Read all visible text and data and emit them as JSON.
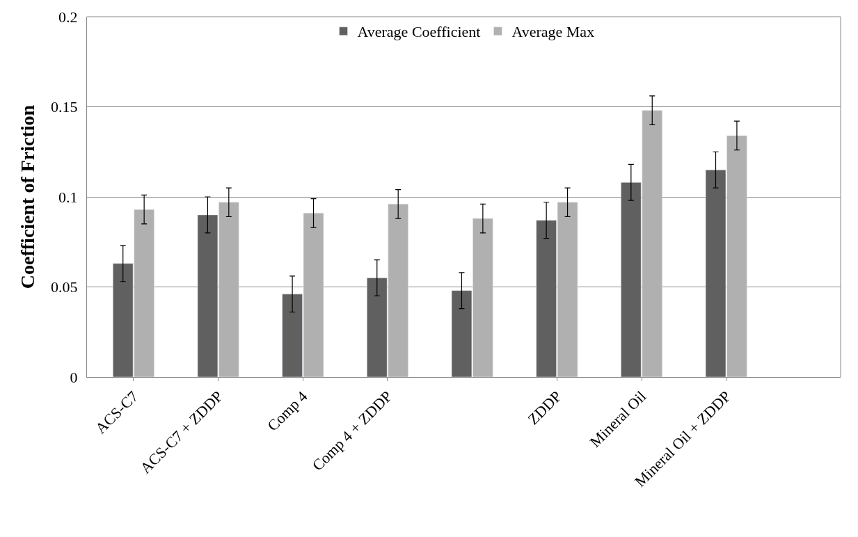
{
  "chart_data": {
    "type": "bar",
    "ylabel": "Coefficient of Friction",
    "categories": [
      "ACS-C7",
      "ACS-C7 + ZDDP",
      "Comp 4",
      "Comp 4 + ZDDP",
      null,
      "ZDDP",
      "Mineral Oil",
      "Mineral Oil + ZDDP"
    ],
    "series": [
      {
        "name": "Average Coefficient",
        "color": "#606060",
        "values": [
          0.063,
          0.09,
          0.046,
          0.055,
          0.048,
          0.087,
          0.108,
          0.115
        ],
        "errors": [
          0.01,
          0.01,
          0.01,
          0.01,
          0.01,
          0.01,
          0.01,
          0.01
        ]
      },
      {
        "name": "Average Max",
        "color": "#b0b0b0",
        "values": [
          0.093,
          0.097,
          0.091,
          0.096,
          0.088,
          0.097,
          0.148,
          0.134
        ],
        "errors": [
          0.008,
          0.008,
          0.008,
          0.008,
          0.008,
          0.008,
          0.008,
          0.008
        ]
      }
    ],
    "ylim": [
      0,
      0.2
    ],
    "yticks": [
      0,
      0.05,
      0.1,
      0.15,
      0.2
    ],
    "grid": "y",
    "legend": "top"
  }
}
